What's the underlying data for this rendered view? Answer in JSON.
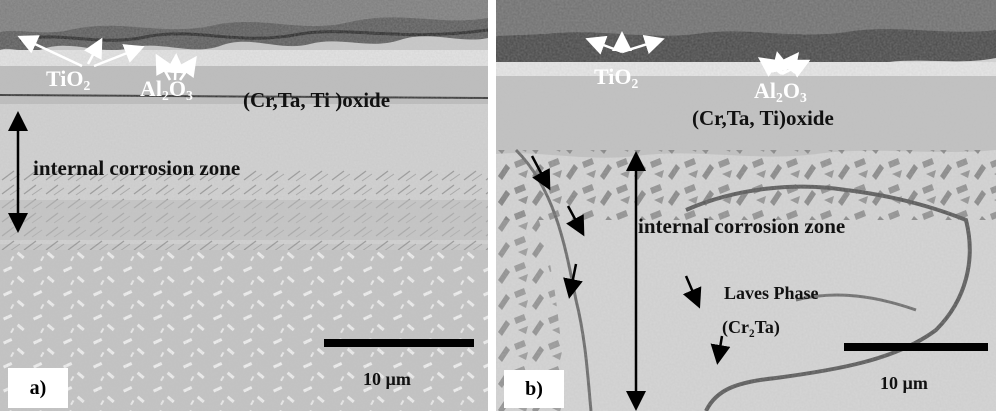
{
  "panel_a": {
    "tio2": "TiO",
    "tio2_sub": "2",
    "al_a": "Al",
    "al_sub1": "2",
    "al_o": "O",
    "al_sub2": "3",
    "oxide": "(Cr,Ta, Ti )oxide",
    "zone": "internal corrosion zone",
    "scale": "10 µm",
    "tag": "a)"
  },
  "panel_b": {
    "tio2": "TiO",
    "tio2_sub": "2",
    "al_a": "Al",
    "al_sub1": "2",
    "al_o": "O",
    "al_sub2": "3",
    "oxide": "(Cr,Ta, Ti)oxide",
    "zone": "internal corrosion zone",
    "laves": "Laves Phase",
    "cr_open": "(Cr",
    "cr_sub": "2",
    "cr_rest": "Ta)",
    "scale": "10 µm",
    "tag": "b)"
  }
}
